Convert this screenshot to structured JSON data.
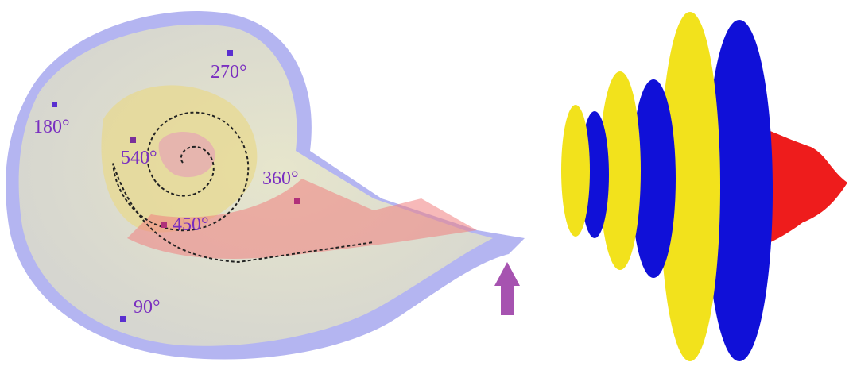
{
  "labels": [
    "270°",
    "180°",
    "540°",
    "360°",
    "450°",
    "90°"
  ]
}
